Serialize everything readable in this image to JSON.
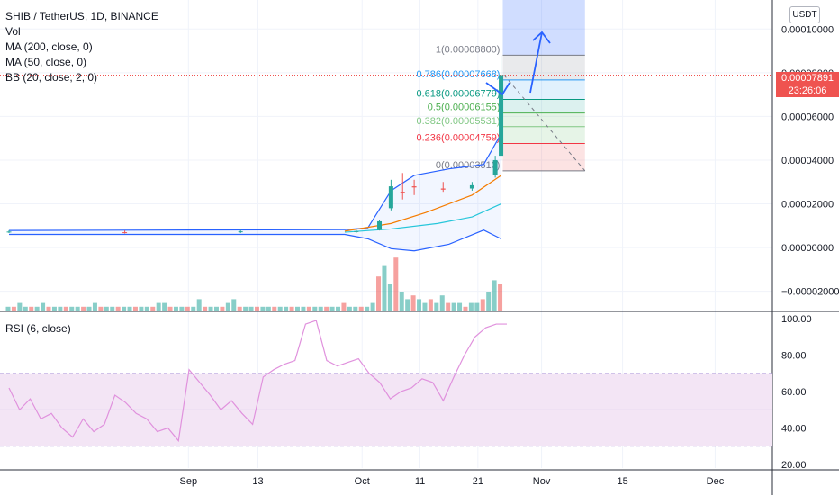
{
  "legend": {
    "symbol": "SHIB / TetherUS, 1D, BINANCE",
    "vol": "Vol",
    "ma200": "MA (200, close, 0)",
    "ma50": "MA (50, close, 0)",
    "bb": "BB (20, close, 2, 0)",
    "rsi": "RSI (6, close)"
  },
  "currency_button": "USDT",
  "price_tag": {
    "price": "0.00007891",
    "countdown": "23:26:06"
  },
  "colors": {
    "up": "#26a69a",
    "down": "#ef5350",
    "bb": "#2962ff",
    "ma_orange": "#f57c00",
    "ma_cyan": "#26c6da",
    "rsi": "#e091dd",
    "rsi_band": "#f3e5f5"
  },
  "chart_data": [
    {
      "type": "candlestick",
      "symbol": "SHIB / TetherUS",
      "interval": "1D",
      "exchange": "BINANCE",
      "y_ticks": [
        "0.00010000",
        "0.00008000",
        "0.00006000",
        "0.00004000",
        "0.00002000",
        "0.00000000",
        "−0.00002000"
      ],
      "y_tick_values": [
        0.0001,
        8e-05,
        6e-05,
        4e-05,
        2e-05,
        0,
        -2e-05
      ],
      "ylim": [
        -2.88e-05,
        0.0001133
      ],
      "x_ticks": [
        "Sep",
        "13",
        "Oct",
        "11",
        "21",
        "Nov",
        "15",
        "Dec"
      ],
      "x_tick_days": [
        31,
        43,
        61,
        71,
        81,
        92,
        106,
        122
      ],
      "candles_daily_approx": [
        {
          "day": 0,
          "o": 7.1e-06,
          "h": 7.9e-06,
          "l": 6.6e-06,
          "c": 7.3e-06
        },
        {
          "day": 20,
          "o": 7e-06,
          "h": 7.8e-06,
          "l": 6.4e-06,
          "c": 6.8e-06
        },
        {
          "day": 40,
          "o": 7e-06,
          "h": 8.1e-06,
          "l": 6.6e-06,
          "c": 7.4e-06
        },
        {
          "day": 60,
          "o": 7.2e-06,
          "h": 8e-06,
          "l": 6.7e-06,
          "c": 7.5e-06
        },
        {
          "day": 64,
          "o": 8e-06,
          "h": 1.25e-05,
          "l": 7.8e-06,
          "c": 1.2e-05
        },
        {
          "day": 66,
          "o": 1.8e-05,
          "h": 3.1e-05,
          "l": 1.7e-05,
          "c": 2.8e-05
        },
        {
          "day": 68,
          "o": 2.55e-05,
          "h": 3.41e-05,
          "l": 2.2e-05,
          "c": 2.5e-05
        },
        {
          "day": 70,
          "o": 2.8e-05,
          "h": 3.1e-05,
          "l": 2.4e-05,
          "c": 2.75e-05
        },
        {
          "day": 75,
          "o": 2.7e-05,
          "h": 3e-05,
          "l": 2.55e-05,
          "c": 2.65e-05
        },
        {
          "day": 80,
          "o": 2.7e-05,
          "h": 3e-05,
          "l": 2.6e-05,
          "c": 2.85e-05
        },
        {
          "day": 84,
          "o": 3.3e-05,
          "h": 4.2e-05,
          "l": 3.2e-05,
          "c": 4e-05
        },
        {
          "day": 85,
          "o": 4.2e-05,
          "h": 8.8e-05,
          "l": 4e-05,
          "c": 7.89e-05
        }
      ],
      "fibonacci": [
        {
          "label": "1(0.00008800)",
          "value": 8.8e-05
        },
        {
          "label": "0.786(0.00007668)",
          "value": 7.668e-05
        },
        {
          "label": "0.618(0.00006779)",
          "value": 6.779e-05
        },
        {
          "label": "0.5(0.00006155)",
          "value": 6.155e-05
        },
        {
          "label": "0.382(0.00005531)",
          "value": 5.531e-05
        },
        {
          "label": "0.236(0.00004759)",
          "value": 4.759e-05
        },
        {
          "label": "0(0.00003510)",
          "value": 3.51e-05
        }
      ],
      "last_price": 7.891e-05
    },
    {
      "type": "line",
      "name": "RSI (6, close)",
      "y_ticks": [
        "100.00",
        "80.00",
        "60.00",
        "40.00",
        "20.00"
      ],
      "ylim": [
        20,
        100
      ],
      "band": [
        30,
        70
      ],
      "values": [
        62,
        50,
        56,
        45,
        48,
        40,
        35,
        45,
        38,
        42,
        58,
        54,
        48,
        45,
        38,
        40,
        33,
        72,
        65,
        58,
        50,
        55,
        48,
        42,
        68,
        72,
        75,
        77,
        97,
        99,
        77,
        74,
        76,
        78,
        70,
        65,
        56,
        60,
        62,
        67,
        65,
        55,
        68,
        80,
        90,
        95,
        97,
        97
      ]
    }
  ]
}
